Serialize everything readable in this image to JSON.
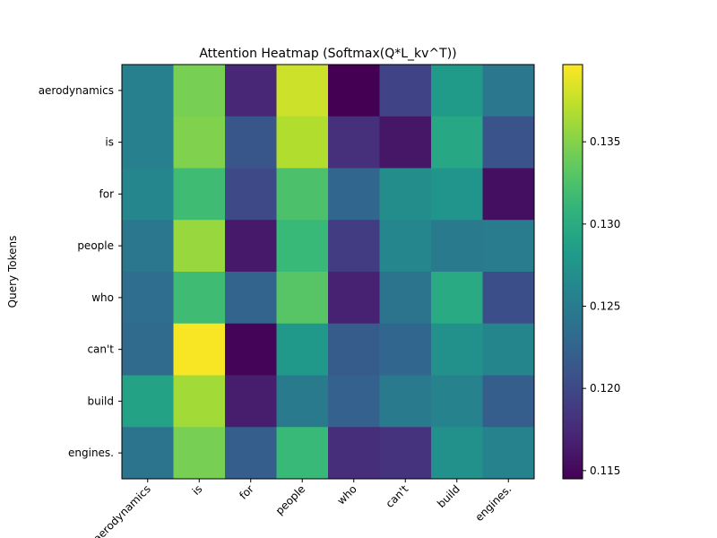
{
  "chart_data": {
    "type": "heatmap",
    "title": "Attention Heatmap (Softmax(Q*L_kv^T))",
    "xlabel": "",
    "ylabel": "Query Tokens",
    "x_tokens": [
      "aerodynamics",
      "is",
      "for",
      "people",
      "who",
      "can't",
      "build",
      "engines."
    ],
    "y_tokens": [
      "aerodynamics",
      "is",
      "for",
      "people",
      "who",
      "can't",
      "build",
      "engines."
    ],
    "values": [
      [
        0.1255,
        0.1345,
        0.1172,
        0.1378,
        0.1145,
        0.1195,
        0.1282,
        0.1245
      ],
      [
        0.1255,
        0.1348,
        0.1212,
        0.1368,
        0.118,
        0.116,
        0.1295,
        0.121
      ],
      [
        0.1262,
        0.1318,
        0.12,
        0.1325,
        0.1228,
        0.1268,
        0.1275,
        0.1155
      ],
      [
        0.1245,
        0.1358,
        0.1162,
        0.1315,
        0.119,
        0.1262,
        0.1248,
        0.125
      ],
      [
        0.1235,
        0.1318,
        0.1225,
        0.133,
        0.1168,
        0.1242,
        0.1298,
        0.1205
      ],
      [
        0.1232,
        0.1395,
        0.1148,
        0.128,
        0.1218,
        0.1228,
        0.1272,
        0.126
      ],
      [
        0.129,
        0.1362,
        0.1165,
        0.1248,
        0.1222,
        0.1248,
        0.1258,
        0.122
      ],
      [
        0.1242,
        0.1345,
        0.122,
        0.1315,
        0.1178,
        0.1182,
        0.1272,
        0.1258
      ]
    ],
    "vmin": 0.1145,
    "vmax": 0.1397,
    "colorbar_ticks": [
      0.115,
      0.12,
      0.125,
      0.13,
      0.135
    ],
    "colorbar_tick_labels": [
      "0.115",
      "0.120",
      "0.125",
      "0.130",
      "0.135"
    ],
    "colormap": "viridis",
    "grid": false
  }
}
